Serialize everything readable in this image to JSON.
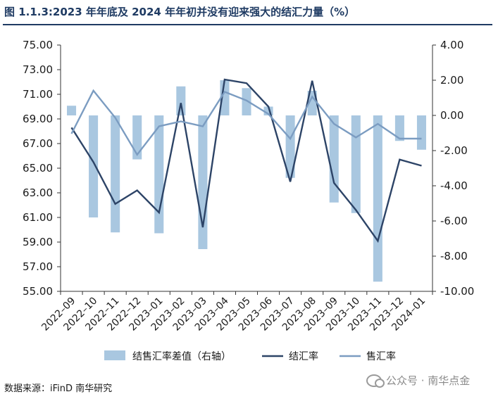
{
  "title": "图 1.1.3:2023 年年底及 2024 年年初并没有迎来强大的结汇力量（%）",
  "source": "数据来源：iFinD 南华研究",
  "watermark": {
    "icon": "wechat-icon",
    "text": "公众号 · 南华点金"
  },
  "colors": {
    "title": "#1f3b63",
    "bars": "#a9c7e0",
    "settlement_line": "#2d4467",
    "sales_line": "#7b9cc1",
    "axis": "#333333"
  },
  "chart_data": {
    "type": "bar+line",
    "categories": [
      "2022–09",
      "2022–10",
      "2022–11",
      "2022–12",
      "2023–01",
      "2023–02",
      "2023–03",
      "2023–04",
      "2023–05",
      "2023–06",
      "2023–07",
      "2023–08",
      "2023–09",
      "2023–10",
      "2023–11",
      "2023–12",
      "2024–01"
    ],
    "left_axis": {
      "min": 55,
      "max": 75,
      "step": 2,
      "decimals": 2,
      "ticks": [
        "55.00",
        "57.00",
        "59.00",
        "61.00",
        "63.00",
        "65.00",
        "67.00",
        "69.00",
        "71.00",
        "73.00",
        "75.00"
      ]
    },
    "right_axis": {
      "min": -10,
      "max": 4,
      "step": 2,
      "decimals": 2,
      "ticks": [
        "-10.00",
        "-8.00",
        "-6.00",
        "-4.00",
        "-2.00",
        "0.00",
        "2.00",
        "4.00"
      ]
    },
    "series": [
      {
        "name": "结售汇率差值（右轴）",
        "kind": "bar",
        "axis": "right",
        "values": [
          0.55,
          -5.8,
          -6.65,
          -2.5,
          -6.7,
          1.65,
          -7.6,
          2.0,
          1.55,
          0.5,
          -3.55,
          1.4,
          -4.95,
          -5.55,
          -9.45,
          -1.45,
          -1.95
        ]
      },
      {
        "name": "结汇率",
        "kind": "line",
        "axis": "left",
        "values": [
          68.3,
          65.5,
          62.1,
          63.2,
          61.4,
          70.3,
          60.2,
          72.2,
          71.9,
          70.0,
          63.9,
          72.1,
          63.8,
          61.6,
          59.1,
          65.7,
          65.2
        ]
      },
      {
        "name": "售汇率",
        "kind": "line",
        "axis": "left",
        "values": [
          67.8,
          71.3,
          69.1,
          66.1,
          68.4,
          68.8,
          68.4,
          71.2,
          70.5,
          69.4,
          67.4,
          70.8,
          68.6,
          67.5,
          68.6,
          67.4,
          67.4
        ]
      }
    ],
    "legend": {
      "placement": "bottom",
      "entries": [
        "结售汇率差值（右轴）",
        "结汇率",
        "售汇率"
      ]
    },
    "grid": false
  }
}
